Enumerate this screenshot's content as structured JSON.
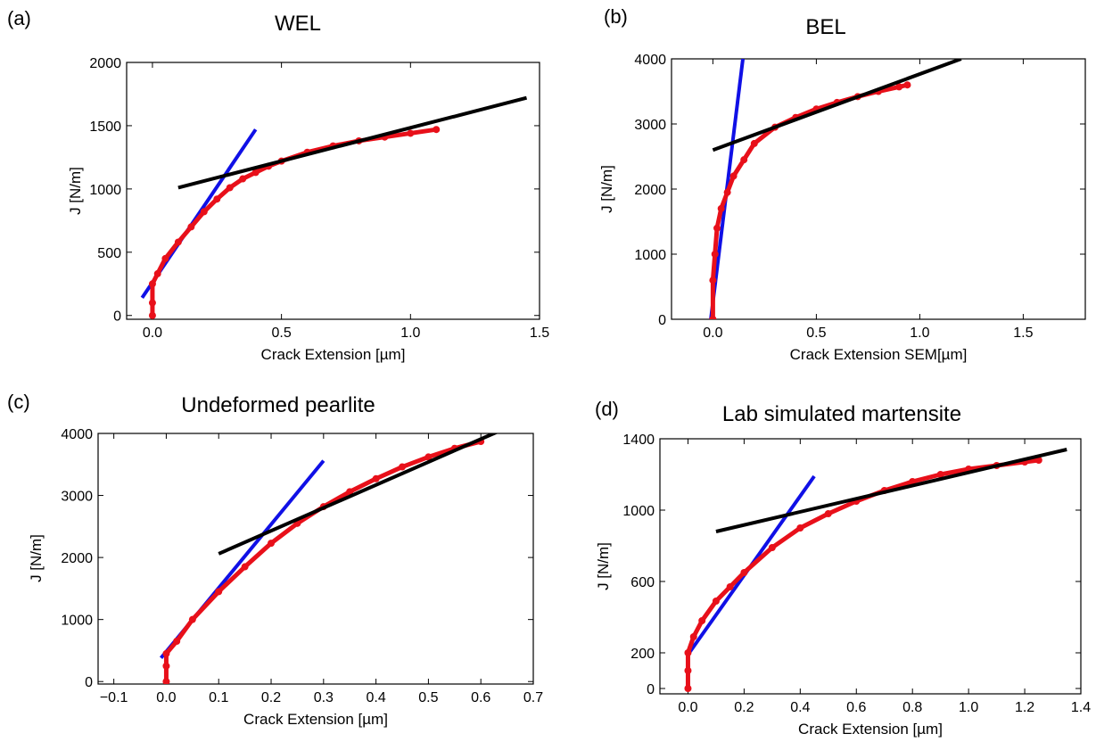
{
  "colors": {
    "data": "#e8101a",
    "blue_line": "#1010e6",
    "black_line": "#000000"
  },
  "chart_data": [
    {
      "panel": "(a)",
      "title": "WEL",
      "type": "scatter",
      "xlabel": "Crack Extension [µm]",
      "ylabel": "J [N/m]",
      "xlim": [
        -0.1,
        1.5
      ],
      "ylim": [
        -30,
        2000
      ],
      "xticks": [
        0.0,
        0.5,
        1.0,
        1.5
      ],
      "xtick_labels": [
        "0.0",
        "0.5",
        "1.0",
        "1.5"
      ],
      "yticks": [
        0,
        500,
        1000,
        1500,
        2000
      ],
      "ytick_labels": [
        "0",
        "500",
        "1000",
        "1500",
        "2000"
      ],
      "grid": false,
      "series": [
        {
          "kind": "data",
          "x": [
            0.0,
            0.0,
            0.0,
            0.02,
            0.05,
            0.1,
            0.15,
            0.2,
            0.25,
            0.3,
            0.35,
            0.4,
            0.45,
            0.5,
            0.6,
            0.7,
            0.8,
            0.9,
            1.0,
            1.1
          ],
          "y": [
            0,
            100,
            250,
            330,
            450,
            580,
            700,
            820,
            920,
            1010,
            1080,
            1130,
            1180,
            1220,
            1290,
            1340,
            1380,
            1410,
            1440,
            1470
          ]
        },
        {
          "kind": "blue_line",
          "x": [
            -0.04,
            0.4
          ],
          "y": [
            140,
            1470
          ]
        },
        {
          "kind": "black_line",
          "x": [
            0.1,
            1.45
          ],
          "y": [
            1010,
            1720
          ]
        }
      ]
    },
    {
      "panel": "(b)",
      "title": "BEL",
      "type": "scatter",
      "xlabel": "Crack Extension SEM[µm]",
      "ylabel": "J [N/m]",
      "xlim": [
        -0.2,
        1.8
      ],
      "ylim": [
        0,
        4000
      ],
      "xticks": [
        0.0,
        0.5,
        1.0,
        1.5
      ],
      "xtick_labels": [
        "0.0",
        "0.5",
        "1.0",
        "1.5"
      ],
      "yticks": [
        0,
        1000,
        2000,
        3000,
        4000
      ],
      "ytick_labels": [
        "0",
        "1000",
        "2000",
        "3000",
        "4000"
      ],
      "grid": false,
      "series": [
        {
          "kind": "data",
          "x": [
            0.0,
            0.0,
            0.01,
            0.02,
            0.04,
            0.07,
            0.1,
            0.15,
            0.2,
            0.3,
            0.4,
            0.5,
            0.6,
            0.7,
            0.8,
            0.9,
            0.94
          ],
          "y": [
            0,
            600,
            1000,
            1400,
            1700,
            1950,
            2200,
            2450,
            2700,
            2950,
            3100,
            3230,
            3330,
            3420,
            3500,
            3570,
            3600
          ]
        },
        {
          "kind": "blue_line",
          "x": [
            -0.01,
            0.145
          ],
          "y": [
            0,
            4000
          ]
        },
        {
          "kind": "black_line",
          "x": [
            0.0,
            1.2
          ],
          "y": [
            2600,
            4000
          ]
        }
      ]
    },
    {
      "panel": "(c)",
      "title": "Undeformed pearlite",
      "type": "scatter",
      "xlabel": "Crack Extension [µm]",
      "ylabel": "J [N/m]",
      "xlim": [
        -0.13,
        0.7
      ],
      "ylim": [
        -40,
        4000
      ],
      "xticks": [
        -0.1,
        0.0,
        0.1,
        0.2,
        0.3,
        0.4,
        0.5,
        0.6,
        0.7
      ],
      "xtick_labels": [
        "−0.1",
        "0.0",
        "0.1",
        "0.2",
        "0.3",
        "0.4",
        "0.5",
        "0.6",
        "0.7"
      ],
      "yticks": [
        0,
        1000,
        2000,
        3000,
        4000
      ],
      "ytick_labels": [
        "0",
        "1000",
        "2000",
        "3000",
        "4000"
      ],
      "grid": false,
      "series": [
        {
          "kind": "data",
          "x": [
            0.0,
            0.0,
            0.0,
            0.02,
            0.05,
            0.1,
            0.15,
            0.2,
            0.25,
            0.3,
            0.35,
            0.4,
            0.45,
            0.5,
            0.55,
            0.6
          ],
          "y": [
            0,
            250,
            450,
            650,
            1000,
            1450,
            1850,
            2230,
            2550,
            2820,
            3060,
            3270,
            3460,
            3620,
            3760,
            3870
          ]
        },
        {
          "kind": "blue_line",
          "x": [
            -0.01,
            0.3
          ],
          "y": [
            380,
            3560
          ]
        },
        {
          "kind": "black_line",
          "x": [
            0.1,
            0.63
          ],
          "y": [
            2060,
            4020
          ]
        }
      ]
    },
    {
      "panel": "(d)",
      "title": "Lab simulated martensite",
      "type": "scatter",
      "xlabel": "Crack Extension [µm]",
      "ylabel": "J [N/m]",
      "xlim": [
        -0.1,
        1.4
      ],
      "ylim": [
        -30,
        1400
      ],
      "xticks": [
        0.0,
        0.2,
        0.4,
        0.6,
        0.8,
        1.0,
        1.2,
        1.4
      ],
      "xtick_labels": [
        "0.0",
        "0.2",
        "0.4",
        "0.6",
        "0.8",
        "1.0",
        "1.2",
        "1.4"
      ],
      "yticks": [
        0,
        200,
        600,
        1000,
        1400
      ],
      "ytick_labels": [
        "0",
        "200",
        "600",
        "1000",
        "1400"
      ],
      "grid": false,
      "series": [
        {
          "kind": "data",
          "x": [
            0.0,
            0.0,
            0.0,
            0.02,
            0.05,
            0.1,
            0.15,
            0.2,
            0.3,
            0.4,
            0.5,
            0.6,
            0.7,
            0.8,
            0.9,
            1.0,
            1.1,
            1.2,
            1.25
          ],
          "y": [
            0,
            100,
            200,
            290,
            380,
            490,
            570,
            650,
            790,
            900,
            980,
            1050,
            1110,
            1160,
            1200,
            1230,
            1250,
            1270,
            1280
          ]
        },
        {
          "kind": "blue_line",
          "x": [
            0.0,
            0.45
          ],
          "y": [
            190,
            1190
          ]
        },
        {
          "kind": "black_line",
          "x": [
            0.1,
            1.35
          ],
          "y": [
            880,
            1340
          ]
        }
      ]
    }
  ]
}
